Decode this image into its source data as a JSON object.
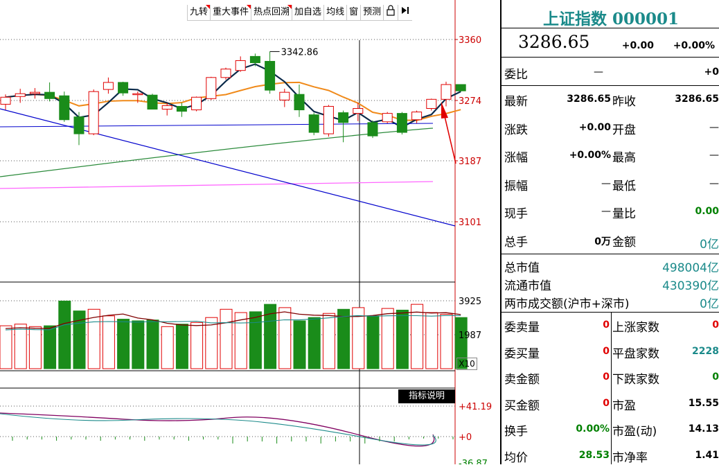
{
  "toolbar": {
    "items": [
      "九转",
      "重大事件",
      "热点回溯",
      "加自选",
      "均线",
      "窗",
      "预测"
    ],
    "lock_icon": "lock-icon",
    "collapse_icon": "collapse-right-icon"
  },
  "price_axis": [
    "3360",
    "3274",
    "3187",
    "3101"
  ],
  "peak_label": "3342.86",
  "volume_axis": [
    "3925",
    "1987"
  ],
  "volume_unit": "X10",
  "indicator_button": "指标说明",
  "indicator_axis": [
    "+41.19",
    "+0",
    "-36.87"
  ],
  "chart_data": {
    "type": "candlestick",
    "series": [
      {
        "name": "",
        "o": 3268,
        "h": 3282,
        "l": 3260,
        "c": 3278
      },
      {
        "name": "",
        "o": 3279,
        "h": 3290,
        "l": 3270,
        "c": 3283
      },
      {
        "name": "",
        "o": 3283,
        "h": 3291,
        "l": 3276,
        "c": 3285
      },
      {
        "name": "",
        "o": 3285,
        "h": 3299,
        "l": 3272,
        "c": 3276
      },
      {
        "name": "",
        "o": 3280,
        "h": 3286,
        "l": 3243,
        "c": 3246
      },
      {
        "name": "",
        "o": 3250,
        "h": 3257,
        "l": 3210,
        "c": 3226
      },
      {
        "name": "",
        "o": 3226,
        "h": 3289,
        "l": 3224,
        "c": 3286
      },
      {
        "name": "",
        "o": 3289,
        "h": 3306,
        "l": 3283,
        "c": 3299
      },
      {
        "name": "",
        "o": 3299,
        "h": 3300,
        "l": 3280,
        "c": 3284
      },
      {
        "name": "",
        "o": 3282,
        "h": 3286,
        "l": 3270,
        "c": 3283
      },
      {
        "name": "",
        "o": 3281,
        "h": 3283,
        "l": 3265,
        "c": 3261
      },
      {
        "name": "",
        "o": 3261,
        "h": 3270,
        "l": 3252,
        "c": 3266
      },
      {
        "name": "",
        "o": 3265,
        "h": 3270,
        "l": 3250,
        "c": 3258
      },
      {
        "name": "",
        "o": 3260,
        "h": 3279,
        "l": 3258,
        "c": 3278
      },
      {
        "name": "",
        "o": 3276,
        "h": 3307,
        "l": 3274,
        "c": 3306
      },
      {
        "name": "",
        "o": 3306,
        "h": 3320,
        "l": 3303,
        "c": 3318
      },
      {
        "name": "",
        "o": 3316,
        "h": 3336,
        "l": 3314,
        "c": 3330
      },
      {
        "name": "",
        "o": 3336,
        "h": 3340,
        "l": 3322,
        "c": 3327
      },
      {
        "name": "",
        "o": 3329,
        "h": 3342.86,
        "l": 3283,
        "c": 3288
      },
      {
        "name": "",
        "o": 3274,
        "h": 3290,
        "l": 3264,
        "c": 3285
      },
      {
        "name": "",
        "o": 3282,
        "h": 3296,
        "l": 3250,
        "c": 3260
      },
      {
        "name": "",
        "o": 3253,
        "h": 3256,
        "l": 3224,
        "c": 3228
      },
      {
        "name": "",
        "o": 3226,
        "h": 3267,
        "l": 3222,
        "c": 3265
      },
      {
        "name": "",
        "o": 3256,
        "h": 3259,
        "l": 3214,
        "c": 3242
      },
      {
        "name": "",
        "o": 3255,
        "h": 3270,
        "l": 3244,
        "c": 3262
      },
      {
        "name": "",
        "o": 3242,
        "h": 3245,
        "l": 3220,
        "c": 3223
      },
      {
        "name": "",
        "o": 3243,
        "h": 3257,
        "l": 3241,
        "c": 3255
      },
      {
        "name": "",
        "o": 3255,
        "h": 3257,
        "l": 3225,
        "c": 3228
      },
      {
        "name": "",
        "o": 3246,
        "h": 3259,
        "l": 3241,
        "c": 3257
      },
      {
        "name": "",
        "o": 3262,
        "h": 3276,
        "l": 3259,
        "c": 3275
      },
      {
        "name": "",
        "o": 3275,
        "h": 3300,
        "l": 3265,
        "c": 3296
      },
      {
        "name": "",
        "o": 3296,
        "h": 3296,
        "l": 3286,
        "c": 3287
      }
    ],
    "price_range": [
      3050,
      3380
    ],
    "volume": [
      2600,
      2700,
      2550,
      2600,
      4100,
      3500,
      3600,
      3200,
      3000,
      2900,
      2950,
      2550,
      2700,
      2800,
      3100,
      3600,
      3400,
      3450,
      3900,
      3700,
      2900,
      3100,
      3350,
      3600,
      3700,
      3200,
      3650,
      3550,
      3900,
      3400,
      3300,
      3100
    ],
    "volume_up": [
      true,
      true,
      true,
      false,
      false,
      false,
      true,
      true,
      false,
      false,
      false,
      true,
      false,
      true,
      true,
      true,
      true,
      false,
      false,
      true,
      false,
      false,
      true,
      false,
      true,
      false,
      true,
      false,
      true,
      true,
      true,
      false
    ]
  },
  "quote": {
    "title": "上证指数 000001",
    "price": "3286.65",
    "change": "+0.00",
    "change_pct": "+0.00%",
    "webi_label": "委比",
    "webi_mid": "—",
    "webi_val": "+0",
    "rows": [
      {
        "l1": "最新",
        "v1": "3286.65",
        "l2": "昨收",
        "v2": "3286.65"
      },
      {
        "l1": "涨跌",
        "v1": "+0.00",
        "l2": "开盘",
        "v2": "—"
      },
      {
        "l1": "涨幅",
        "v1": "+0.00%",
        "l2": "最高",
        "v2": "—"
      },
      {
        "l1": "振幅",
        "v1": "—",
        "l2": "最低",
        "v2": "—"
      },
      {
        "l1": "现手",
        "v1": "—",
        "l2": "量比",
        "v2": "0.00"
      },
      {
        "l1": "总手",
        "v1": "0万",
        "l2": "金额",
        "v2": "0亿"
      }
    ],
    "market": [
      {
        "label": "总市值",
        "value": "498004亿"
      },
      {
        "label": "流通市值",
        "value": "430390亿"
      },
      {
        "label": "两市成交额(沪市+深市)",
        "value": "0亿"
      }
    ],
    "stats": [
      {
        "l1": "委卖量",
        "v1": "0",
        "l2": "上涨家数",
        "v2": "0"
      },
      {
        "l1": "委买量",
        "v1": "0",
        "l2": "平盘家数",
        "v2": "2228"
      },
      {
        "l1": "卖金额",
        "v1": "0",
        "l2": "下跌家数",
        "v2": "0"
      },
      {
        "l1": "买金额",
        "v1": "0",
        "l2": "市盈",
        "v2": "15.55"
      },
      {
        "l1": "换手",
        "v1": "0.00%",
        "l2": "市盈(动)",
        "v2": "14.13"
      },
      {
        "l1": "均价",
        "v1": "28.53",
        "l2": "市净率",
        "v2": "1.41"
      }
    ]
  },
  "colors": {
    "up": "#e00000",
    "down": "#1a8c1a",
    "ma5": "#0b2a4a",
    "ma10": "#f08a1a",
    "ma20": "#2a8a3a",
    "ma60": "#ff66ff",
    "axis": "#cc0000"
  }
}
